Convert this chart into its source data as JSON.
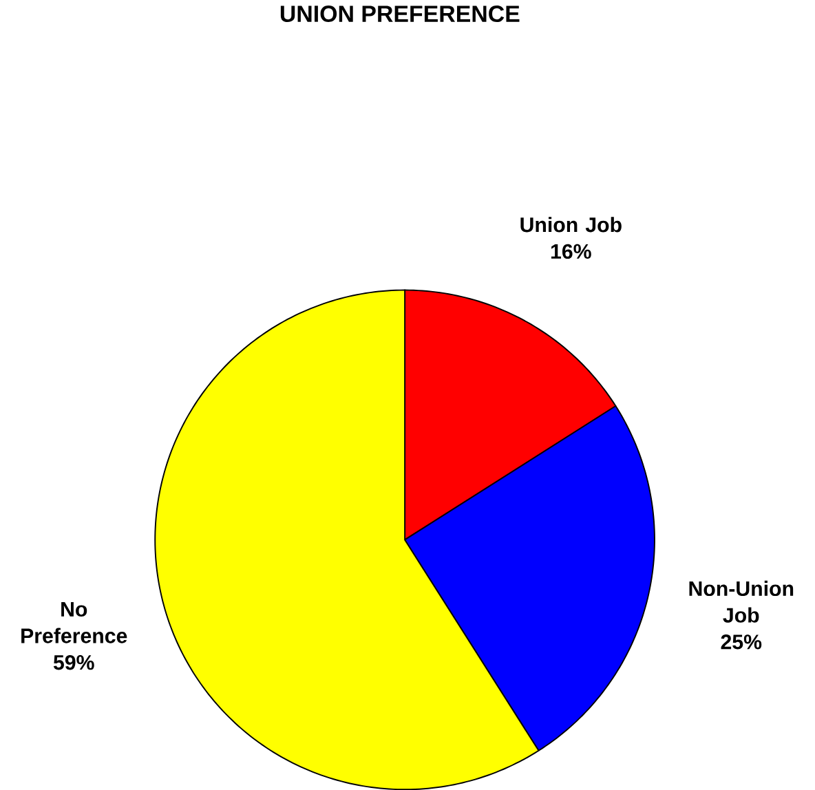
{
  "chart_data": {
    "type": "pie",
    "title": "UNION PREFERENCE",
    "categories": [
      "Union Job",
      "Non-Union Job",
      "No Preference"
    ],
    "values": [
      16,
      25,
      59
    ],
    "colors": [
      "#ff0000",
      "#0000ff",
      "#ffff00"
    ],
    "value_labels": [
      "16%",
      "25%",
      "59%"
    ]
  }
}
